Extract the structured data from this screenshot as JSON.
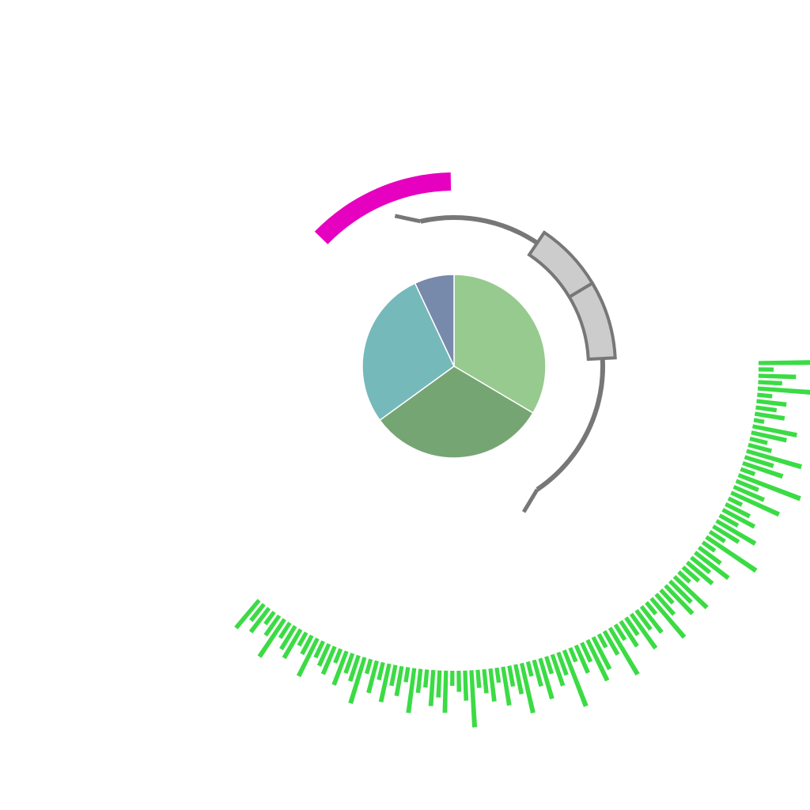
{
  "chart_data": {
    "type": "pie",
    "title": "",
    "pie": {
      "values": [
        33.5,
        31.5,
        28,
        7
      ],
      "colors": [
        "#97ca8e",
        "#76a574",
        "#76b9bb",
        "#788aab"
      ]
    },
    "magenta_arc": {
      "start_deg": -1,
      "end_deg": -46,
      "color": "#e600c0"
    },
    "gray_bracket": {
      "start_deg": 146,
      "end_deg": -13,
      "color": "#777777"
    },
    "gray_boxes": [
      {
        "start_deg": 87,
        "end_deg": 59,
        "color": "#cccccc"
      },
      {
        "start_deg": 59,
        "end_deg": 34,
        "color": "#cccccc"
      }
    ],
    "green_bars": {
      "color": "#3bdb44",
      "start_deg": 89.4,
      "end_deg": 219.8,
      "values": [
        0.35,
        0.1,
        0.25,
        0.16,
        0.45,
        0.1,
        0.2,
        0.14,
        0.2,
        0.07,
        0.3,
        0.24,
        0.12,
        0.16,
        0.38,
        0.2,
        0.28,
        0.1,
        0.44,
        0.16,
        0.22,
        0.35,
        0.1,
        0.18,
        0.24,
        0.14,
        0.3,
        0.2,
        0.12,
        0.4,
        0.1,
        0.18,
        0.28,
        0.16,
        0.22,
        0.14,
        0.1,
        0.3,
        0.2,
        0.26,
        0.12,
        0.18,
        0.34,
        0.1,
        0.22,
        0.16,
        0.28,
        0.14,
        0.2,
        0.12,
        0.36,
        0.18,
        0.1,
        0.24,
        0.3,
        0.14,
        0.2,
        0.1,
        0.4,
        0.16,
        0.22,
        0.12,
        0.28,
        0.18,
        0.1,
        0.34,
        0.2,
        0.14,
        0.26,
        0.1,
        0.22,
        0.16,
        0.12,
        0.38,
        0.2,
        0.14,
        0.1,
        0.28,
        0.18,
        0.24,
        0.12,
        0.16,
        0.3,
        0.1,
        0.2,
        0.14,
        0.26,
        0.12,
        0.22,
        0.1,
        0.32,
        0.18,
        0.14,
        0.24,
        0.1,
        0.2,
        0.16,
        0.12,
        0.28,
        0.14,
        0.1,
        0.22,
        0.18,
        0.12,
        0.3,
        0.16,
        0.1,
        0.2,
        0.14,
        0.24
      ]
    }
  }
}
